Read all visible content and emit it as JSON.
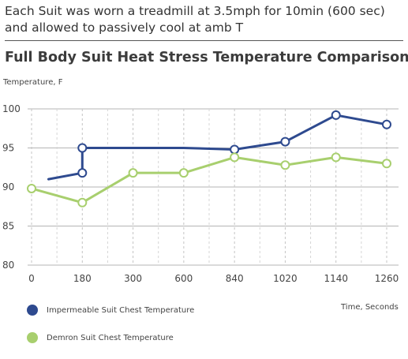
{
  "caption": "Each Suit was worn a treadmill at 3.5mph for 10min (600 sec) and allowed to passively cool at amb T",
  "chart_data": {
    "type": "line",
    "title": "Full Body Suit Heat Stress Temperature Comparison",
    "ylabel": "Temperature, F",
    "xlabel": "Time, Seconds",
    "x_tick_labels": [
      "0",
      "180",
      "300",
      "600",
      "840",
      "1020",
      "1140",
      "1260"
    ],
    "y_ticks": [
      80,
      85,
      90,
      95,
      100
    ],
    "ylim": [
      80,
      100
    ],
    "grid": "dashed",
    "legend_placement": "bottom-left",
    "series": [
      {
        "name": "Impermeable Suit Chest Temperature",
        "color": "#2e4a8f",
        "x": [
          60,
          180,
          180,
          240,
          600,
          840,
          1020,
          1140,
          1260
        ],
        "y": [
          91,
          91.8,
          95,
          95,
          95,
          94.8,
          95.8,
          99.2,
          98
        ],
        "markers": [
          false,
          true,
          true,
          false,
          false,
          true,
          true,
          true,
          true
        ]
      },
      {
        "name": "Demron Suit Chest Temperature",
        "color": "#a8cf6e",
        "x": [
          0,
          180,
          300,
          600,
          840,
          1020,
          1140,
          1260
        ],
        "y": [
          89.8,
          88,
          91.8,
          91.8,
          93.8,
          92.8,
          93.8,
          93
        ],
        "markers": [
          true,
          true,
          true,
          true,
          true,
          true,
          true,
          true
        ]
      }
    ]
  }
}
